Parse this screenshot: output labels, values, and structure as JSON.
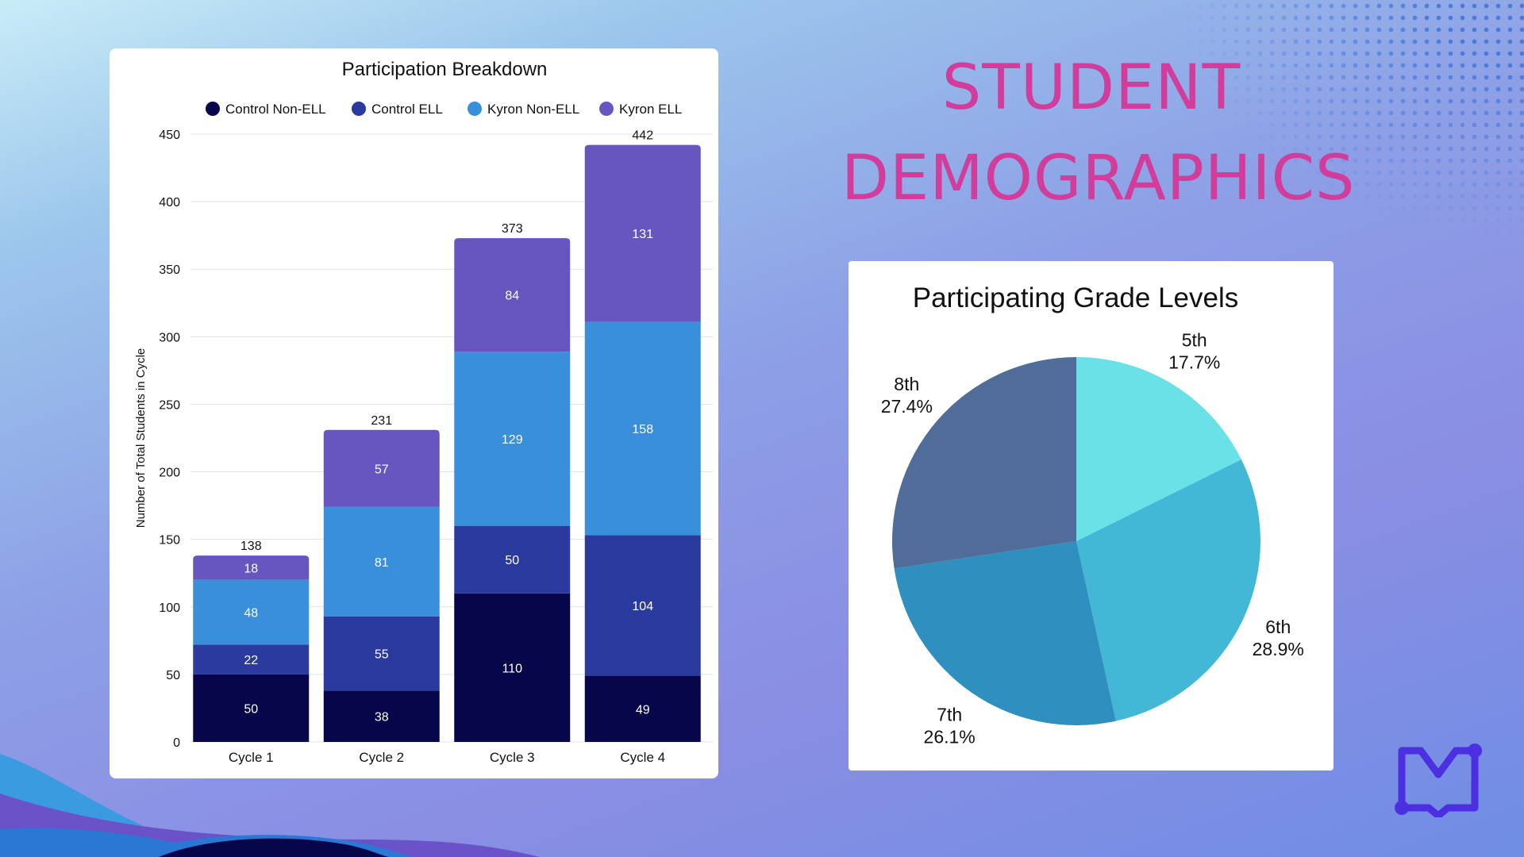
{
  "page": {
    "title_line1": "STUDENT",
    "title_line2": "DEMOGRAPHICS",
    "logo_icon": "open-book-icon",
    "colors": {
      "title": "#d23c9b",
      "logo": "#4b2fe0"
    }
  },
  "chart_data": [
    {
      "type": "bar",
      "stacked": true,
      "title": "Participation Breakdown",
      "xlabel": "",
      "ylabel": "Number of Total Students in Cycle",
      "ylim": [
        0,
        450
      ],
      "yticks": [
        0,
        50,
        100,
        150,
        200,
        250,
        300,
        350,
        400,
        450
      ],
      "grid": true,
      "legend_position": "top",
      "categories": [
        "Cycle 1",
        "Cycle 2",
        "Cycle 3",
        "Cycle 4"
      ],
      "totals": [
        138,
        231,
        373,
        442
      ],
      "series": [
        {
          "name": "Control Non-ELL",
          "color": "#07064a",
          "values": [
            50,
            38,
            110,
            49
          ]
        },
        {
          "name": "Control ELL",
          "color": "#2a3a9e",
          "values": [
            22,
            55,
            50,
            104
          ]
        },
        {
          "name": "Kyron Non-ELL",
          "color": "#3a8fda",
          "values": [
            48,
            81,
            129,
            158
          ]
        },
        {
          "name": "Kyron ELL",
          "color": "#6856c0",
          "values": [
            18,
            57,
            84,
            131
          ]
        }
      ]
    },
    {
      "type": "pie",
      "title": "Participating Grade Levels",
      "slices": [
        {
          "label": "5th",
          "value": 17.7,
          "display": "17.7%",
          "color": "#6ae1e6"
        },
        {
          "label": "6th",
          "value": 28.9,
          "display": "28.9%",
          "color": "#42b7d6"
        },
        {
          "label": "7th",
          "value": 26.1,
          "display": "26.1%",
          "color": "#2f8fbf"
        },
        {
          "label": "8th",
          "value": 27.4,
          "display": "27.4%",
          "color": "#4f6d98"
        }
      ]
    }
  ]
}
